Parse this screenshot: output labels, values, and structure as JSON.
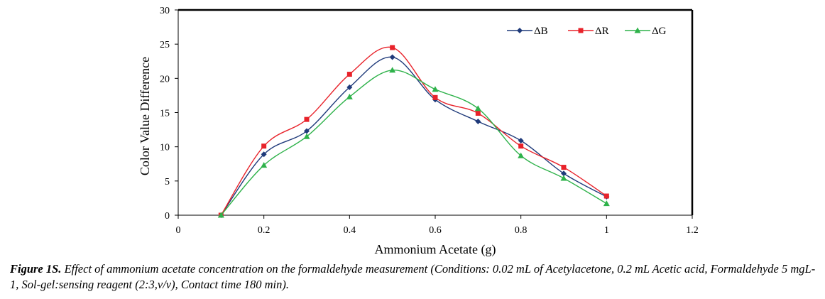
{
  "chart_data": {
    "type": "line",
    "title": "",
    "xlabel": "Ammonium Acetate (g)",
    "ylabel": "Color Value Difference",
    "xlim": [
      0,
      1.2
    ],
    "ylim": [
      0,
      30
    ],
    "x_ticks": [
      "0",
      "0.2",
      "0.4",
      "0.6",
      "0.8",
      "1",
      "1.2"
    ],
    "y_ticks": [
      "0",
      "5",
      "10",
      "15",
      "20",
      "25",
      "30"
    ],
    "legend_position": "top-right",
    "x": [
      0.1,
      0.2,
      0.3,
      0.4,
      0.5,
      0.6,
      0.7,
      0.8,
      0.9,
      1.0
    ],
    "series": [
      {
        "name": "ΔB",
        "color": "#1f3a7a",
        "marker": "diamond",
        "values": [
          0,
          8.9,
          12.3,
          18.7,
          23.1,
          16.9,
          13.7,
          10.9,
          6.1,
          2.7
        ]
      },
      {
        "name": "ΔR",
        "color": "#e8222a",
        "marker": "square",
        "values": [
          0,
          10.1,
          14.0,
          20.6,
          24.5,
          17.2,
          14.9,
          10.1,
          7.0,
          2.8
        ]
      },
      {
        "name": "ΔG",
        "color": "#2eb24a",
        "marker": "triangle",
        "values": [
          0,
          7.3,
          11.5,
          17.3,
          21.2,
          18.4,
          15.6,
          8.7,
          5.4,
          1.7
        ]
      }
    ]
  },
  "caption": {
    "label": "Figure 1S.",
    "text": " Effect of ammonium acetate concentration on the formaldehyde measurement (Conditions: 0.02 mL of Acetylacetone, 0.2 mL Acetic acid, Formaldehyde 5 mgL-1, Sol-gel:sensing reagent (2:3,v/v), Contact time 180 min)."
  }
}
